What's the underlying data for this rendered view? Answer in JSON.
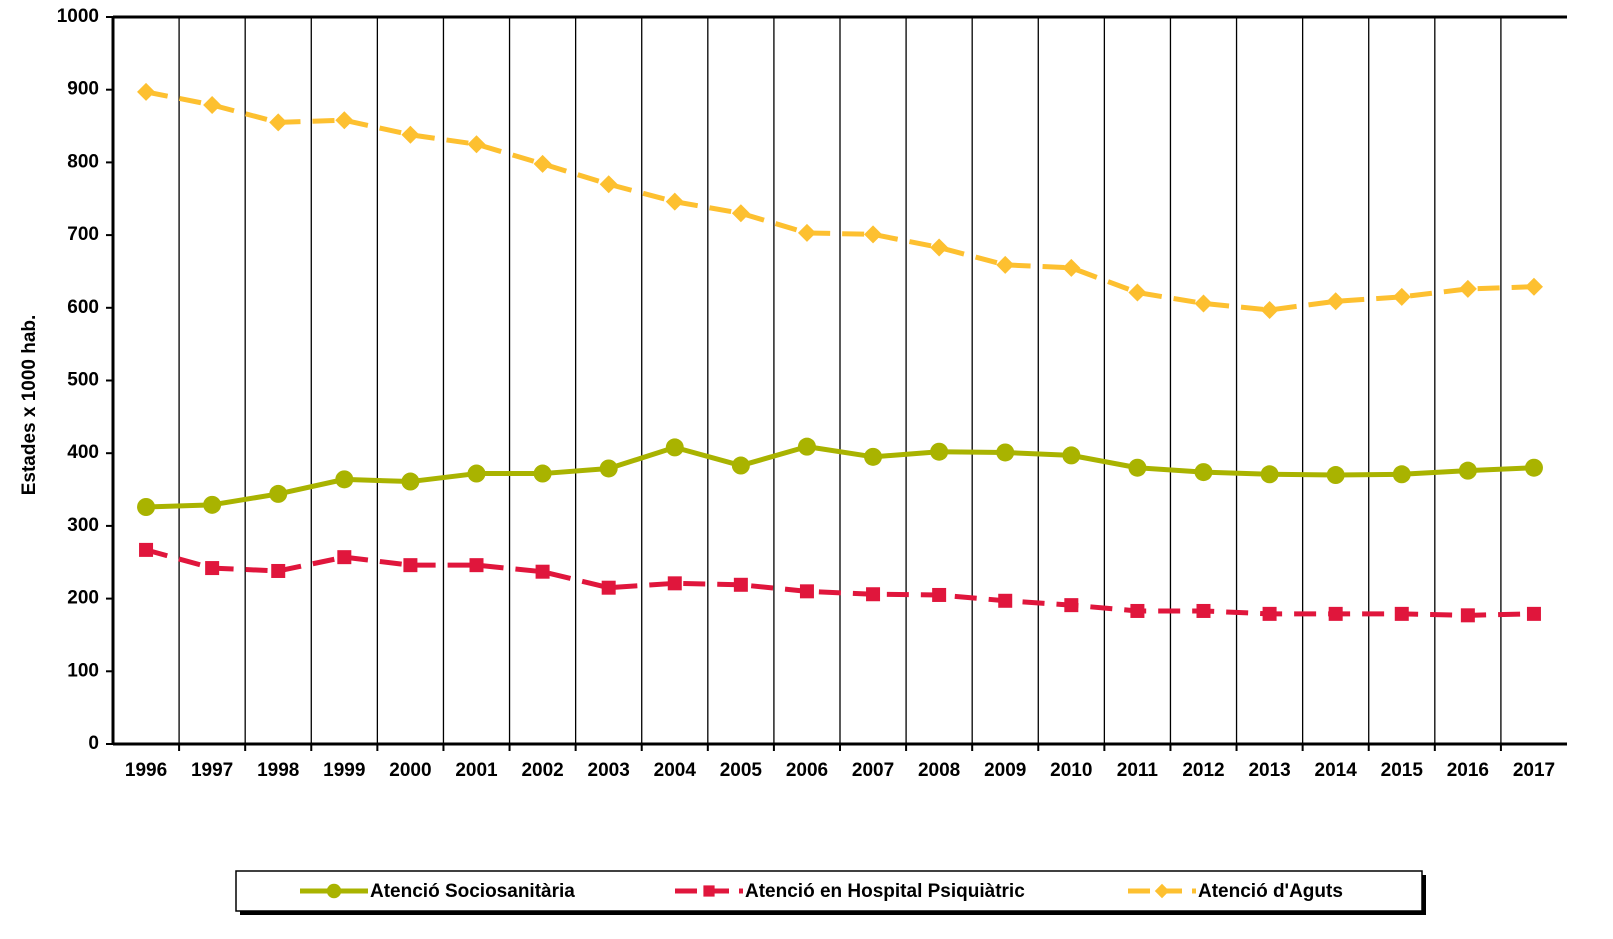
{
  "chart_data": {
    "type": "line",
    "y_label": "Estades x 1000 hab.",
    "categories": [
      "1996",
      "1997",
      "1998",
      "1999",
      "2000",
      "2001",
      "2002",
      "2003",
      "2004",
      "2005",
      "2006",
      "2007",
      "2008",
      "2009",
      "2010",
      "2011",
      "2012",
      "2013",
      "2014",
      "2015",
      "2016",
      "2017"
    ],
    "series": [
      {
        "name": "Atenció Sociosanitària",
        "color": "#a9b300",
        "marker": "circle",
        "dashed": false,
        "values": [
          326,
          329,
          344,
          364,
          361,
          372,
          372,
          379,
          408,
          383,
          409,
          395,
          402,
          401,
          397,
          380,
          374,
          371,
          370,
          371,
          376,
          380
        ]
      },
      {
        "name": "Atenció en Hospital Psiquiàtric",
        "color": "#e0163c",
        "marker": "square",
        "dashed": true,
        "values": [
          267,
          242,
          238,
          257,
          246,
          246,
          237,
          215,
          221,
          219,
          210,
          206,
          205,
          197,
          191,
          183,
          183,
          179,
          179,
          179,
          177,
          179
        ]
      },
      {
        "name": "Atenció d'Aguts",
        "color": "#fdc030",
        "marker": "diamond",
        "dashed": true,
        "values": [
          897,
          879,
          855,
          858,
          838,
          825,
          798,
          770,
          746,
          730,
          703,
          701,
          683,
          659,
          655,
          621,
          606,
          597,
          609,
          615,
          626,
          629
        ]
      }
    ],
    "ylim": [
      0,
      1000
    ],
    "yticks": [
      0,
      100,
      200,
      300,
      400,
      500,
      600,
      700,
      800,
      900,
      1000
    ],
    "grid": "x",
    "legend": "bottom"
  }
}
